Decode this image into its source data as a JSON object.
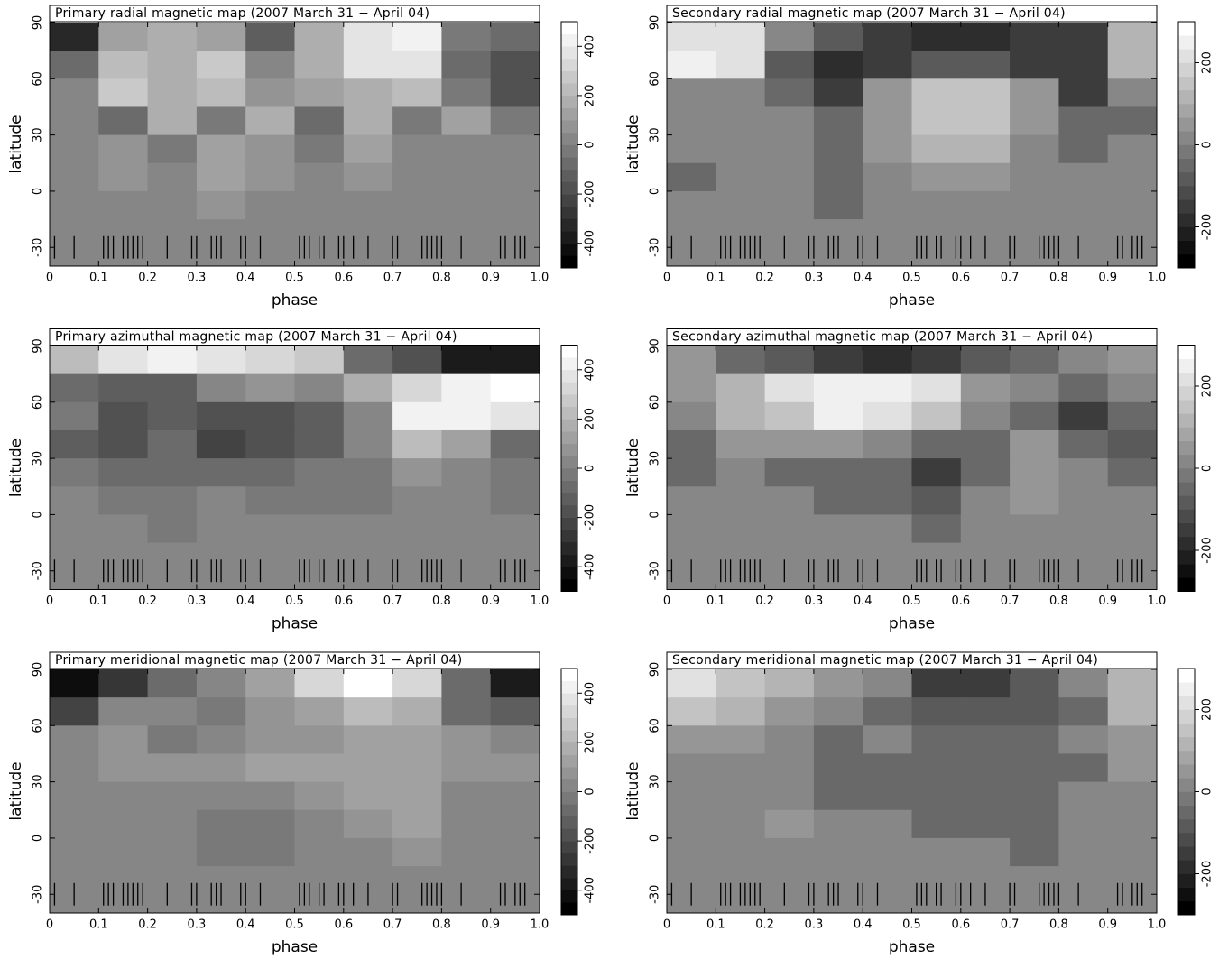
{
  "chart_data": [
    {
      "type": "heatmap",
      "title": "Primary radial magnetic map (2007 March 31 − April 04)",
      "xlabel": "phase",
      "ylabel": "latitude",
      "xlim": [
        0,
        1
      ],
      "ylim": [
        -40,
        90
      ],
      "xticks": [
        0,
        0.1,
        0.2,
        0.3,
        0.4,
        0.5,
        0.6,
        0.7,
        0.8,
        0.9,
        {
          "value": 1,
          "label": "1.0"
        }
      ],
      "yticks": [
        -30,
        0,
        30,
        60,
        90
      ],
      "clim": [
        -500,
        500
      ],
      "cticks": [
        -400,
        -200,
        0,
        200,
        400
      ],
      "levels": 20,
      "x_edges": [
        0,
        0.1,
        0.2,
        0.3,
        0.4,
        0.5,
        0.6,
        0.7,
        0.8,
        0.9,
        1
      ],
      "y_edges": [
        90,
        75,
        60,
        45,
        30,
        15,
        0,
        -15,
        -40
      ],
      "z": [
        [
          -350,
          100,
          150,
          100,
          -150,
          150,
          350,
          400,
          -50,
          -100
        ],
        [
          -100,
          200,
          150,
          250,
          0,
          150,
          350,
          350,
          -100,
          -200
        ],
        [
          0,
          250,
          150,
          200,
          50,
          100,
          150,
          200,
          -50,
          -200
        ],
        [
          0,
          -100,
          150,
          -50,
          150,
          -100,
          150,
          -50,
          100,
          -50
        ],
        [
          0,
          50,
          -50,
          100,
          50,
          -50,
          100,
          0,
          0,
          0
        ],
        [
          0,
          50,
          0,
          100,
          50,
          0,
          50,
          0,
          0,
          0
        ],
        [
          0,
          0,
          0,
          50,
          0,
          0,
          0,
          0,
          0,
          0
        ],
        [
          0,
          0,
          0,
          0,
          0,
          0,
          0,
          0,
          0,
          0
        ]
      ],
      "observations": [
        0.01,
        0.05,
        0.11,
        0.12,
        0.13,
        0.15,
        0.16,
        0.17,
        0.18,
        0.19,
        0.24,
        0.29,
        0.3,
        0.33,
        0.34,
        0.35,
        0.39,
        0.4,
        0.43,
        0.51,
        0.52,
        0.53,
        0.55,
        0.56,
        0.59,
        0.6,
        0.62,
        0.65,
        0.7,
        0.71,
        0.76,
        0.77,
        0.78,
        0.79,
        0.8,
        0.84,
        0.92,
        0.93,
        0.95,
        0.96,
        0.97
      ]
    },
    {
      "type": "heatmap",
      "title": "Secondary radial magnetic map (2007 March 31 − April 04)",
      "xlabel": "phase",
      "ylabel": "latitude",
      "xlim": [
        0,
        1
      ],
      "ylim": [
        -40,
        90
      ],
      "xticks": [
        0,
        0.1,
        0.2,
        0.3,
        0.4,
        0.5,
        0.6,
        0.7,
        0.8,
        0.9,
        {
          "value": 1,
          "label": "1.0"
        }
      ],
      "yticks": [
        -30,
        0,
        30,
        60,
        90
      ],
      "clim": [
        -300,
        300
      ],
      "cticks": [
        -200,
        0,
        200
      ],
      "levels": 18,
      "x_edges": [
        0,
        0.1,
        0.2,
        0.3,
        0.4,
        0.5,
        0.6,
        0.7,
        0.8,
        0.9,
        1
      ],
      "y_edges": [
        90,
        75,
        60,
        45,
        30,
        15,
        0,
        -15,
        -40
      ],
      "z": [
        [
          200,
          200,
          0,
          -100,
          -150,
          -200,
          -200,
          -150,
          -150,
          100
        ],
        [
          250,
          200,
          -100,
          -200,
          -150,
          -100,
          -100,
          -150,
          -150,
          100
        ],
        [
          0,
          0,
          -50,
          -150,
          50,
          150,
          150,
          50,
          -150,
          0
        ],
        [
          0,
          0,
          0,
          -50,
          50,
          150,
          150,
          50,
          -50,
          -50
        ],
        [
          0,
          0,
          0,
          -50,
          50,
          100,
          100,
          0,
          -50,
          0
        ],
        [
          -50,
          0,
          0,
          -50,
          0,
          50,
          50,
          0,
          0,
          0
        ],
        [
          0,
          0,
          0,
          -50,
          0,
          0,
          0,
          0,
          0,
          0
        ],
        [
          0,
          0,
          0,
          0,
          0,
          0,
          0,
          0,
          0,
          0
        ]
      ],
      "observations": [
        0.01,
        0.05,
        0.11,
        0.12,
        0.13,
        0.15,
        0.16,
        0.17,
        0.18,
        0.19,
        0.24,
        0.29,
        0.3,
        0.33,
        0.34,
        0.35,
        0.39,
        0.4,
        0.43,
        0.51,
        0.52,
        0.53,
        0.55,
        0.56,
        0.59,
        0.6,
        0.62,
        0.65,
        0.7,
        0.71,
        0.76,
        0.77,
        0.78,
        0.79,
        0.8,
        0.84,
        0.92,
        0.93,
        0.95,
        0.96,
        0.97
      ]
    },
    {
      "type": "heatmap",
      "title": "Primary azimuthal magnetic map (2007 March 31 − April 04)",
      "xlabel": "phase",
      "ylabel": "latitude",
      "xlim": [
        0,
        1
      ],
      "ylim": [
        -40,
        90
      ],
      "xticks": [
        0,
        0.1,
        0.2,
        0.3,
        0.4,
        0.5,
        0.6,
        0.7,
        0.8,
        0.9,
        {
          "value": 1,
          "label": "1.0"
        }
      ],
      "yticks": [
        -30,
        0,
        30,
        60,
        90
      ],
      "clim": [
        -500,
        500
      ],
      "cticks": [
        -400,
        -200,
        0,
        200,
        400
      ],
      "levels": 20,
      "x_edges": [
        0,
        0.1,
        0.2,
        0.3,
        0.4,
        0.5,
        0.6,
        0.7,
        0.8,
        0.9,
        1
      ],
      "y_edges": [
        90,
        75,
        60,
        45,
        30,
        15,
        0,
        -15,
        -40
      ],
      "z": [
        [
          200,
          350,
          400,
          350,
          300,
          250,
          -100,
          -200,
          -400,
          -400
        ],
        [
          -100,
          -150,
          -150,
          0,
          50,
          0,
          150,
          300,
          400,
          450
        ],
        [
          -50,
          -200,
          -150,
          -200,
          -200,
          -150,
          0,
          400,
          400,
          350
        ],
        [
          -150,
          -200,
          -100,
          -250,
          -200,
          -150,
          0,
          200,
          100,
          -100
        ],
        [
          -50,
          -100,
          -100,
          -100,
          -100,
          -50,
          -50,
          50,
          0,
          -50
        ],
        [
          0,
          -50,
          -50,
          0,
          -50,
          -50,
          -50,
          0,
          0,
          -50
        ],
        [
          0,
          0,
          -50,
          0,
          0,
          0,
          0,
          0,
          0,
          0
        ],
        [
          0,
          0,
          0,
          0,
          0,
          0,
          0,
          0,
          0,
          0
        ]
      ],
      "observations": [
        0.01,
        0.05,
        0.11,
        0.12,
        0.13,
        0.15,
        0.16,
        0.17,
        0.18,
        0.19,
        0.24,
        0.29,
        0.3,
        0.33,
        0.34,
        0.35,
        0.39,
        0.4,
        0.43,
        0.51,
        0.52,
        0.53,
        0.55,
        0.56,
        0.59,
        0.6,
        0.62,
        0.65,
        0.7,
        0.71,
        0.76,
        0.77,
        0.78,
        0.79,
        0.8,
        0.84,
        0.92,
        0.93,
        0.95,
        0.96,
        0.97
      ]
    },
    {
      "type": "heatmap",
      "title": "Secondary azimuthal magnetic map (2007 March 31 − April 04)",
      "xlabel": "phase",
      "ylabel": "latitude",
      "xlim": [
        0,
        1
      ],
      "ylim": [
        -40,
        90
      ],
      "xticks": [
        0,
        0.1,
        0.2,
        0.3,
        0.4,
        0.5,
        0.6,
        0.7,
        0.8,
        0.9,
        {
          "value": 1,
          "label": "1.0"
        }
      ],
      "yticks": [
        -30,
        0,
        30,
        60,
        90
      ],
      "clim": [
        -300,
        300
      ],
      "cticks": [
        -200,
        0,
        200
      ],
      "levels": 18,
      "x_edges": [
        0,
        0.1,
        0.2,
        0.3,
        0.4,
        0.5,
        0.6,
        0.7,
        0.8,
        0.9,
        1
      ],
      "y_edges": [
        90,
        75,
        60,
        45,
        30,
        15,
        0,
        -15,
        -40
      ],
      "z": [
        [
          50,
          -50,
          -100,
          -150,
          -200,
          -150,
          -100,
          -50,
          0,
          50
        ],
        [
          50,
          100,
          200,
          250,
          250,
          200,
          50,
          0,
          -50,
          0
        ],
        [
          0,
          100,
          150,
          250,
          200,
          150,
          0,
          -50,
          -150,
          -50
        ],
        [
          -50,
          50,
          50,
          50,
          0,
          -50,
          -50,
          50,
          -50,
          -100
        ],
        [
          -50,
          0,
          -50,
          -50,
          -50,
          -150,
          -50,
          50,
          0,
          -50
        ],
        [
          0,
          0,
          0,
          -50,
          -50,
          -100,
          0,
          50,
          0,
          0
        ],
        [
          0,
          0,
          0,
          0,
          0,
          -50,
          0,
          0,
          0,
          0
        ],
        [
          0,
          0,
          0,
          0,
          0,
          0,
          0,
          0,
          0,
          0
        ]
      ],
      "observations": [
        0.01,
        0.05,
        0.11,
        0.12,
        0.13,
        0.15,
        0.16,
        0.17,
        0.18,
        0.19,
        0.24,
        0.29,
        0.3,
        0.33,
        0.34,
        0.35,
        0.39,
        0.4,
        0.43,
        0.51,
        0.52,
        0.53,
        0.55,
        0.56,
        0.59,
        0.6,
        0.62,
        0.65,
        0.7,
        0.71,
        0.76,
        0.77,
        0.78,
        0.79,
        0.8,
        0.84,
        0.92,
        0.93,
        0.95,
        0.96,
        0.97
      ]
    },
    {
      "type": "heatmap",
      "title": "Primary meridional magnetic map (2007 March 31 − April 04)",
      "xlabel": "phase",
      "ylabel": "latitude",
      "xlim": [
        0,
        1
      ],
      "ylim": [
        -40,
        90
      ],
      "xticks": [
        0,
        0.1,
        0.2,
        0.3,
        0.4,
        0.5,
        0.6,
        0.7,
        0.8,
        0.9,
        {
          "value": 1,
          "label": "1.0"
        }
      ],
      "yticks": [
        -30,
        0,
        30,
        60,
        90
      ],
      "clim": [
        -500,
        500
      ],
      "cticks": [
        -400,
        -200,
        0,
        200,
        400
      ],
      "levels": 20,
      "x_edges": [
        0,
        0.1,
        0.2,
        0.3,
        0.4,
        0.5,
        0.6,
        0.7,
        0.8,
        0.9,
        1
      ],
      "y_edges": [
        90,
        75,
        60,
        45,
        30,
        15,
        0,
        -15,
        -40
      ],
      "z": [
        [
          -450,
          -300,
          -100,
          0,
          100,
          300,
          450,
          300,
          -100,
          -400
        ],
        [
          -250,
          0,
          0,
          -50,
          50,
          100,
          200,
          150,
          -100,
          -150
        ],
        [
          0,
          50,
          -50,
          0,
          50,
          50,
          100,
          100,
          50,
          0
        ],
        [
          0,
          50,
          50,
          50,
          100,
          100,
          100,
          100,
          50,
          50
        ],
        [
          0,
          0,
          0,
          0,
          0,
          50,
          100,
          100,
          0,
          0
        ],
        [
          0,
          0,
          0,
          -50,
          -50,
          0,
          50,
          100,
          0,
          0
        ],
        [
          0,
          0,
          0,
          -50,
          -50,
          0,
          0,
          50,
          0,
          0
        ],
        [
          0,
          0,
          0,
          0,
          0,
          0,
          0,
          0,
          0,
          0
        ]
      ],
      "observations": [
        0.01,
        0.05,
        0.11,
        0.12,
        0.13,
        0.15,
        0.16,
        0.17,
        0.18,
        0.19,
        0.24,
        0.29,
        0.3,
        0.33,
        0.34,
        0.35,
        0.39,
        0.4,
        0.43,
        0.51,
        0.52,
        0.53,
        0.55,
        0.56,
        0.59,
        0.6,
        0.62,
        0.65,
        0.7,
        0.71,
        0.76,
        0.77,
        0.78,
        0.79,
        0.8,
        0.84,
        0.92,
        0.93,
        0.95,
        0.96,
        0.97
      ]
    },
    {
      "type": "heatmap",
      "title": "Secondary meridional magnetic map (2007 March 31 − April 04)",
      "xlabel": "phase",
      "ylabel": "latitude",
      "xlim": [
        0,
        1
      ],
      "ylim": [
        -40,
        90
      ],
      "xticks": [
        0,
        0.1,
        0.2,
        0.3,
        0.4,
        0.5,
        0.6,
        0.7,
        0.8,
        0.9,
        {
          "value": 1,
          "label": "1.0"
        }
      ],
      "yticks": [
        -30,
        0,
        30,
        60,
        90
      ],
      "clim": [
        -300,
        300
      ],
      "cticks": [
        -200,
        0,
        200
      ],
      "levels": 18,
      "x_edges": [
        0,
        0.1,
        0.2,
        0.3,
        0.4,
        0.5,
        0.6,
        0.7,
        0.8,
        0.9,
        1
      ],
      "y_edges": [
        90,
        75,
        60,
        45,
        30,
        15,
        0,
        -15,
        -40
      ],
      "z": [
        [
          200,
          150,
          100,
          50,
          0,
          -150,
          -150,
          -100,
          0,
          100
        ],
        [
          150,
          100,
          50,
          0,
          -50,
          -100,
          -100,
          -100,
          -50,
          100
        ],
        [
          50,
          50,
          0,
          -50,
          0,
          -50,
          -50,
          -50,
          0,
          50
        ],
        [
          0,
          0,
          0,
          -50,
          -50,
          -50,
          -50,
          -50,
          -50,
          50
        ],
        [
          0,
          0,
          0,
          -50,
          -50,
          -50,
          -50,
          -50,
          0,
          0
        ],
        [
          0,
          0,
          50,
          0,
          0,
          -50,
          -50,
          -50,
          0,
          0
        ],
        [
          0,
          0,
          0,
          0,
          0,
          0,
          0,
          -50,
          0,
          0
        ],
        [
          0,
          0,
          0,
          0,
          0,
          0,
          0,
          0,
          0,
          0
        ]
      ],
      "observations": [
        0.01,
        0.05,
        0.11,
        0.12,
        0.13,
        0.15,
        0.16,
        0.17,
        0.18,
        0.19,
        0.24,
        0.29,
        0.3,
        0.33,
        0.34,
        0.35,
        0.39,
        0.4,
        0.43,
        0.51,
        0.52,
        0.53,
        0.55,
        0.56,
        0.59,
        0.6,
        0.62,
        0.65,
        0.7,
        0.71,
        0.76,
        0.77,
        0.78,
        0.79,
        0.8,
        0.84,
        0.92,
        0.93,
        0.95,
        0.96,
        0.97
      ]
    }
  ]
}
